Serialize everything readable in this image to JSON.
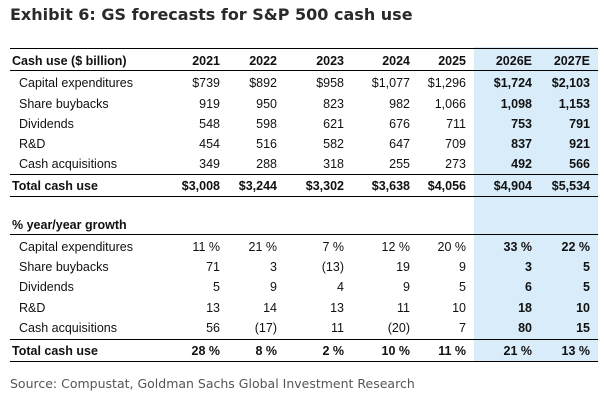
{
  "title": "Exhibit 6: GS forecasts for S&P 500 cash use",
  "section1": {
    "header": {
      "label": "Cash use ($ billion)",
      "years": [
        "2021",
        "2022",
        "2023",
        "2024",
        "2025",
        "2026E",
        "2027E"
      ]
    },
    "rows": [
      {
        "label": "Capital expenditures",
        "values": [
          "$739",
          "$892",
          "$958",
          "$1,077",
          "$1,296",
          "$1,724",
          "$2,103"
        ]
      },
      {
        "label": "Share buybacks",
        "values": [
          "919",
          "950",
          "823",
          "982",
          "1,066",
          "1,098",
          "1,153"
        ]
      },
      {
        "label": "Dividends",
        "values": [
          "548",
          "598",
          "621",
          "676",
          "711",
          "753",
          "791"
        ]
      },
      {
        "label": "R&D",
        "values": [
          "454",
          "516",
          "582",
          "647",
          "709",
          "837",
          "921"
        ]
      },
      {
        "label": "Cash acquisitions",
        "values": [
          "349",
          "288",
          "318",
          "255",
          "273",
          "492",
          "566"
        ]
      }
    ],
    "total": {
      "label": "Total cash use",
      "values": [
        "$3,008",
        "$3,244",
        "$3,302",
        "$3,638",
        "$4,056",
        "$4,904",
        "$5,534"
      ]
    }
  },
  "section2": {
    "header": {
      "label": "% year/year growth"
    },
    "rows": [
      {
        "label": "Capital expenditures",
        "values": [
          "11 %",
          "21 %",
          "7 %",
          "12 %",
          "20 %",
          "33 %",
          "22 %"
        ]
      },
      {
        "label": "Share buybacks",
        "values": [
          "71",
          "3",
          "(13)",
          "19",
          "9",
          "3",
          "5"
        ]
      },
      {
        "label": "Dividends",
        "values": [
          "5",
          "9",
          "4",
          "9",
          "5",
          "6",
          "5"
        ]
      },
      {
        "label": "R&D",
        "values": [
          "13",
          "14",
          "13",
          "11",
          "10",
          "18",
          "10"
        ]
      },
      {
        "label": "Cash acquisitions",
        "values": [
          "56",
          "(17)",
          "11",
          "(20)",
          "7",
          "80",
          "15"
        ]
      }
    ],
    "total": {
      "label": "Total cash use",
      "values": [
        "28 %",
        "8 %",
        "2 %",
        "10 %",
        "11 %",
        "21 %",
        "13 %"
      ]
    }
  },
  "source": "Source: Compustat, Goldman Sachs Global Investment Research",
  "colors": {
    "forecast_shade": "#d9ecfa",
    "title": "#2a2a2a",
    "source": "#555555"
  }
}
